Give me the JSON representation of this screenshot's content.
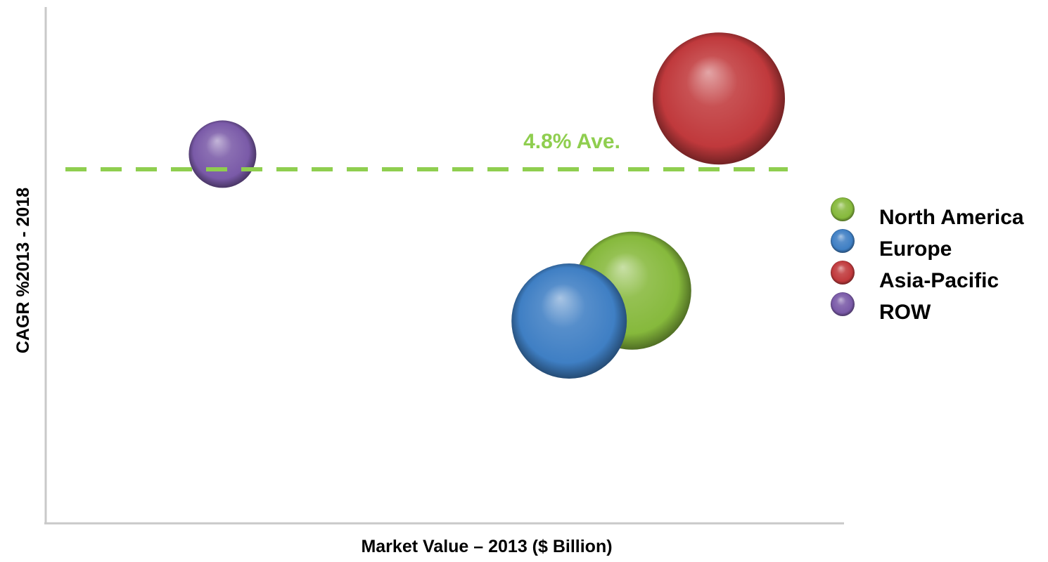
{
  "chart_data": {
    "type": "scatter",
    "subtype": "bubble",
    "title": "",
    "xlabel": "Market Value – 2013 ($ Billion)",
    "ylabel": "CAGR %2013 - 2018",
    "x_ticks_shown": false,
    "y_ticks_shown": false,
    "grid": false,
    "legend_position": "right",
    "xlim": [
      0,
      100
    ],
    "ylim": [
      0,
      100
    ],
    "reference_line": {
      "label": "4.8% Ave.",
      "y": 70,
      "color": "#8fce4f",
      "style": "dashed"
    },
    "series": [
      {
        "name": "North America",
        "x": 74,
        "y": 46,
        "size": 84,
        "color": "#86b93c"
      },
      {
        "name": "Europe",
        "x": 66,
        "y": 40,
        "size": 82,
        "color": "#3f7fc4"
      },
      {
        "name": "Asia-Pacific",
        "x": 85,
        "y": 84,
        "size": 94,
        "color": "#c0393c"
      },
      {
        "name": "ROW",
        "x": 22,
        "y": 73,
        "size": 48,
        "color": "#7a5aa8"
      }
    ]
  }
}
